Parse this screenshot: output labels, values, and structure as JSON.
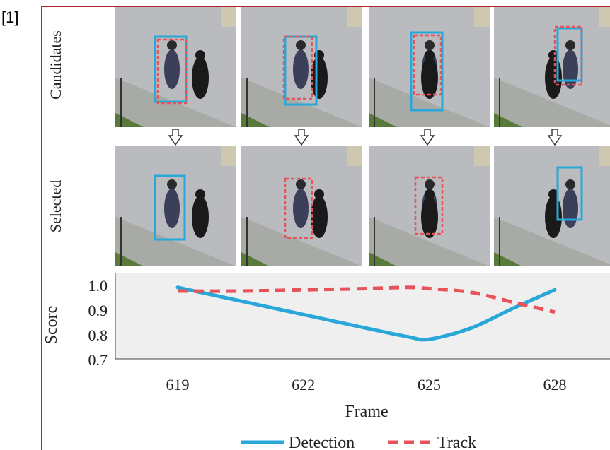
{
  "reference_label": "[1]",
  "rows": {
    "candidates_label": "Candidates",
    "selected_label": "Selected"
  },
  "colors": {
    "detection": "#2aa7d9",
    "track": "#e8525a",
    "border": "#b3262b",
    "plot_bg": "#efefef"
  },
  "chart_data": {
    "type": "line",
    "xlabel": "Frame",
    "ylabel": "Score",
    "x_ticks": [
      "619",
      "622",
      "625",
      "628"
    ],
    "y_ticks": [
      "1.0",
      "0.9",
      "0.8",
      "0.7"
    ],
    "xlim": [
      619,
      628
    ],
    "ylim": [
      0.7,
      1.02
    ],
    "grid": false,
    "legend_position": "bottom",
    "series": [
      {
        "name": "Detection",
        "style": "solid",
        "x": [
          619,
          620.5,
          622,
          623.5,
          624.5,
          625,
          626,
          627,
          628
        ],
        "y": [
          0.995,
          0.94,
          0.885,
          0.83,
          0.795,
          0.785,
          0.83,
          0.91,
          0.985
        ]
      },
      {
        "name": "Track",
        "style": "dashed",
        "x": [
          619,
          620.5,
          622,
          623.5,
          624.5,
          625,
          626,
          627,
          628
        ],
        "y": [
          0.98,
          0.98,
          0.985,
          0.99,
          0.995,
          0.99,
          0.975,
          0.935,
          0.895
        ]
      }
    ]
  }
}
